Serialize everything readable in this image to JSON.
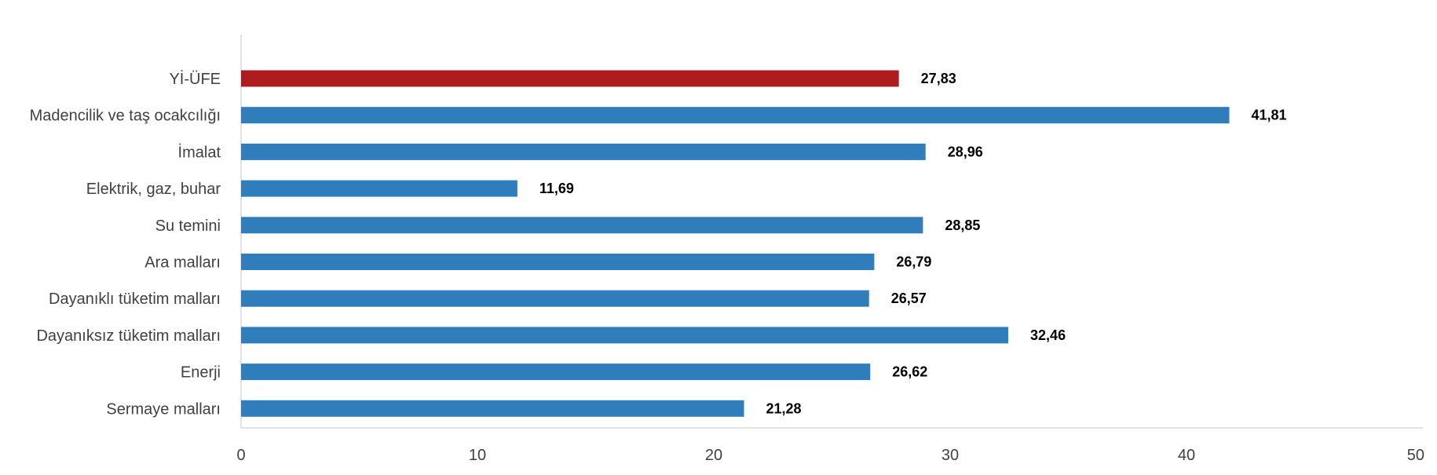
{
  "chart_data": {
    "type": "bar",
    "orientation": "horizontal",
    "categories": [
      "Yİ-ÜFE",
      "Madencilik ve taş ocakcılığı",
      "İmalat",
      "Elektrik, gaz, buhar",
      "Su temini",
      "Ara malları",
      "Dayanıklı tüketim malları",
      "Dayanıksız tüketim malları",
      "Enerji",
      "Sermaye malları"
    ],
    "values": [
      27.83,
      41.81,
      28.96,
      11.69,
      28.85,
      26.79,
      26.57,
      32.46,
      26.62,
      21.28
    ],
    "value_labels": [
      "27,83",
      "41,81",
      "28,96",
      "11,69",
      "28,85",
      "26,79",
      "26,57",
      "32,46",
      "26,62",
      "21,28"
    ],
    "bar_colors": [
      "#ae1c1f",
      "#2f7dbb",
      "#2f7dbb",
      "#2f7dbb",
      "#2f7dbb",
      "#2f7dbb",
      "#2f7dbb",
      "#2f7dbb",
      "#2f7dbb",
      "#2f7dbb"
    ],
    "highlight_color": "#ae1c1f",
    "bar_color": "#2f7dbb",
    "xlim": [
      0,
      50
    ],
    "x_ticks": [
      0,
      10,
      20,
      30,
      40,
      50
    ],
    "x_tick_labels": [
      "0",
      "10",
      "20",
      "30",
      "40",
      "50"
    ],
    "title": "",
    "xlabel": "",
    "ylabel": "",
    "grid": false,
    "legend": "none",
    "data_labels_shown": true
  }
}
